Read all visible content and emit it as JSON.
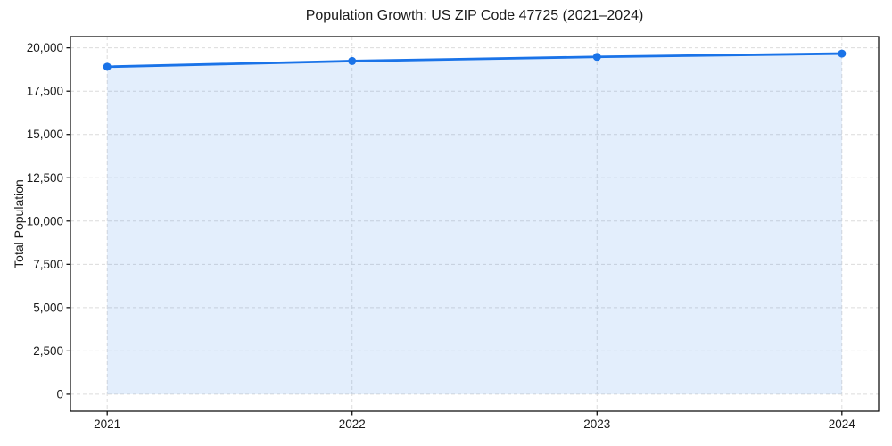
{
  "figure": {
    "kind": "static-line-chart-figure"
  },
  "chart_data": {
    "type": "area",
    "title": "Population Growth: US ZIP Code 47725 (2021–2024)",
    "xlabel": "",
    "ylabel": "Total Population",
    "x": [
      2021,
      2022,
      2023,
      2024
    ],
    "values": [
      18910,
      19240,
      19480,
      19670
    ],
    "x_tick_labels": [
      "2021",
      "2022",
      "2023",
      "2024"
    ],
    "y_ticks": [
      0,
      2500,
      5000,
      7500,
      10000,
      12500,
      15000,
      17500,
      20000
    ],
    "y_tick_labels": [
      "0",
      "2,500",
      "5,000",
      "7,500",
      "10,000",
      "12,500",
      "15,000",
      "17,500",
      "20,000"
    ],
    "xlim": [
      2020.85,
      2024.15
    ],
    "ylim": [
      -983,
      20653
    ],
    "grid": true,
    "grid_style": "dashed",
    "legend": "none",
    "fill_to_zero": true,
    "marker": "circle",
    "colors": {
      "line": "#1a73e8",
      "marker": "#1a73e8",
      "fill": "#1a73e8",
      "fill_opacity": 0.12,
      "grid": "#dcdcdc",
      "spine": "#000000",
      "text": "#1a1a1a",
      "background": "#ffffff"
    }
  }
}
